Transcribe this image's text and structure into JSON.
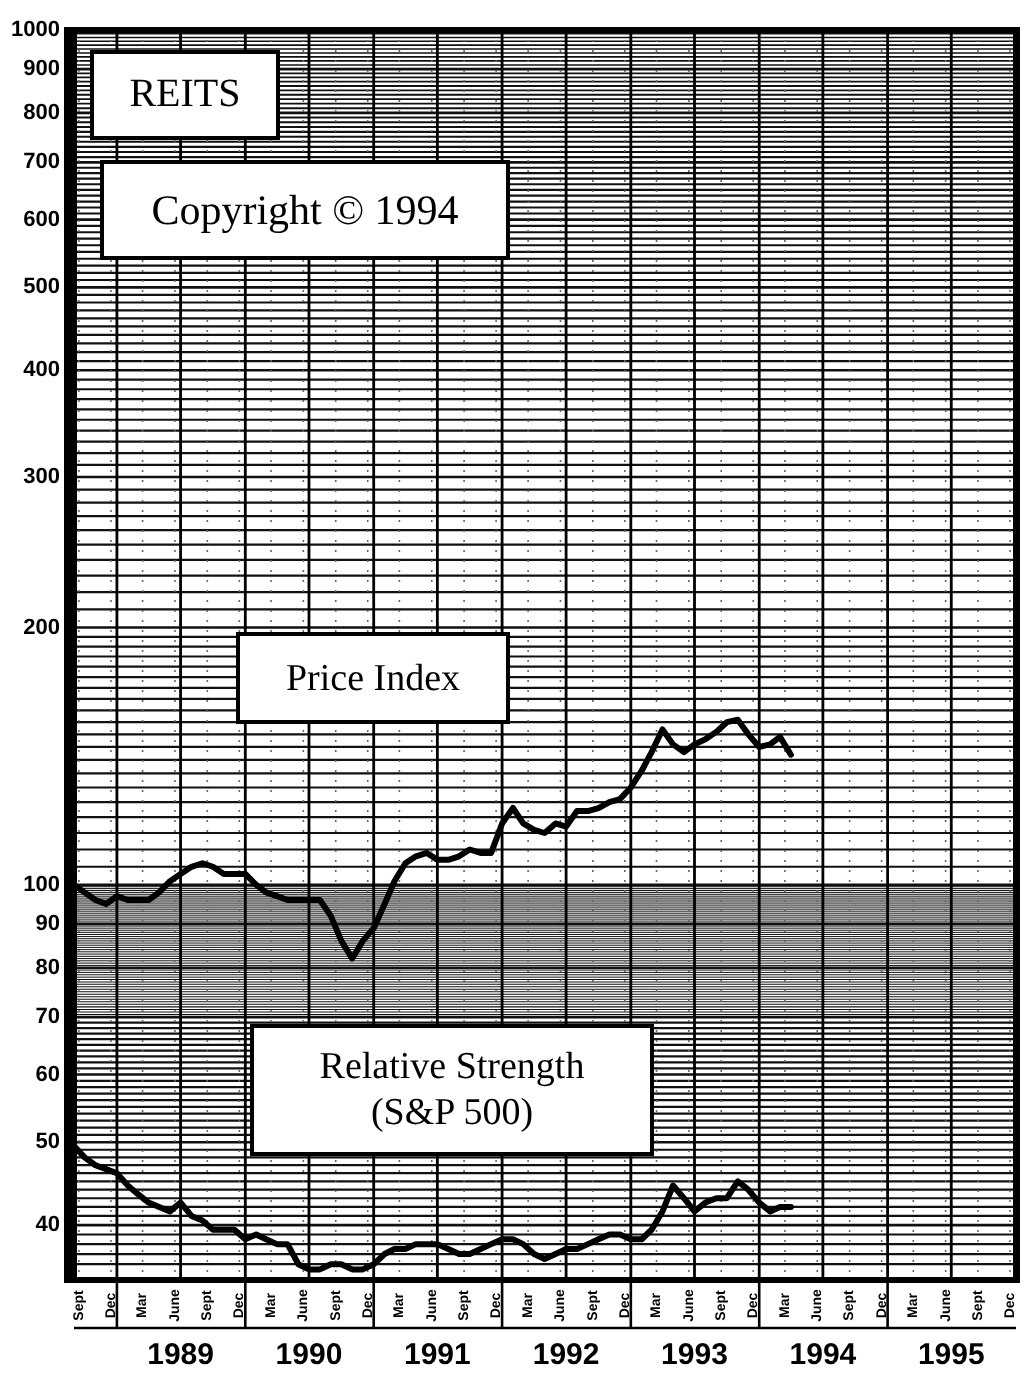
{
  "chart_data": {
    "type": "line",
    "title": "REITS",
    "annotations": [
      "Copyright © 1994"
    ],
    "log": true,
    "grid": true,
    "xlim": [
      "1988-09-01",
      "1996-01-01"
    ],
    "xticks": [
      {
        "value": "1988-09-15",
        "label": "Sept"
      },
      {
        "value": "1988-12-15",
        "label": "Dec"
      },
      {
        "value": "1989-01-01",
        "label": null
      },
      {
        "value": "1989-03-15",
        "label": "Mar"
      },
      {
        "value": "1989-06-15",
        "label": "June"
      },
      {
        "value": "1989-09-15",
        "label": "Sept"
      },
      {
        "value": "1989-12-15",
        "label": "Dec"
      },
      {
        "value": "1990-01-01",
        "label": null
      },
      {
        "value": "1990-03-15",
        "label": "Mar"
      },
      {
        "value": "1990-06-15",
        "label": "June"
      },
      {
        "value": "1990-09-15",
        "label": "Sept"
      },
      {
        "value": "1990-12-15",
        "label": "Dec"
      },
      {
        "value": "1991-01-01",
        "label": null
      },
      {
        "value": "1991-03-15",
        "label": "Mar"
      },
      {
        "value": "1991-06-15",
        "label": "June"
      },
      {
        "value": "1991-09-15",
        "label": "Sept"
      },
      {
        "value": "1991-12-15",
        "label": "Dec"
      },
      {
        "value": "1992-01-01",
        "label": null
      },
      {
        "value": "1992-03-15",
        "label": "Mar"
      },
      {
        "value": "1992-06-15",
        "label": "June"
      },
      {
        "value": "1992-09-15",
        "label": "Sept"
      },
      {
        "value": "1992-12-15",
        "label": "Dec"
      },
      {
        "value": "1993-01-01",
        "label": null
      },
      {
        "value": "1993-03-15",
        "label": "Mar"
      },
      {
        "value": "1993-06-15",
        "label": "June"
      },
      {
        "value": "1993-09-15",
        "label": "Sept"
      },
      {
        "value": "1993-12-15",
        "label": "Dec"
      },
      {
        "value": "1994-01-01",
        "label": null
      },
      {
        "value": "1994-03-15",
        "label": "Mar"
      },
      {
        "value": "1994-06-15",
        "label": "June"
      },
      {
        "value": "1994-09-15",
        "label": "Sept"
      },
      {
        "value": "1994-12-15",
        "label": "Dec"
      },
      {
        "value": "1995-01-01",
        "label": null
      },
      {
        "value": "1995-03-15",
        "label": "Mar"
      },
      {
        "value": "1995-06-15",
        "label": "June"
      },
      {
        "value": "1995-09-15",
        "label": "Sept"
      },
      {
        "value": "1995-12-15",
        "label": "Dec"
      }
    ],
    "x2lim": [
      "1988-09-01",
      "1996-01-01"
    ],
    "x2ticks": [
      {
        "value": "1989-07-01",
        "label": "1989"
      },
      {
        "value": "1990-07-01",
        "label": "1990"
      },
      {
        "value": "1991-07-01",
        "label": "1991"
      },
      {
        "value": "1992-07-01",
        "label": "1992"
      },
      {
        "value": "1993-07-01",
        "label": "1993"
      },
      {
        "value": "1994-07-01",
        "label": "1994"
      },
      {
        "value": "1995-07-01",
        "label": "1995"
      }
    ],
    "ylim": [
      34.5,
      1000
    ],
    "yticks": [
      {
        "value": 36,
        "label": null
      },
      {
        "value": 37,
        "label": null
      },
      {
        "value": 38,
        "label": null
      },
      {
        "value": 39,
        "label": null
      },
      40,
      {
        "value": 41,
        "label": null
      },
      {
        "value": 42,
        "label": null
      },
      {
        "value": 43,
        "label": null
      },
      {
        "value": 44,
        "label": null
      },
      {
        "value": 45,
        "label": null
      },
      {
        "value": 46,
        "label": null
      },
      {
        "value": 47,
        "label": null
      },
      {
        "value": 48,
        "label": null
      },
      {
        "value": 49,
        "label": null
      },
      50,
      {
        "value": 51,
        "label": null
      },
      {
        "value": 52,
        "label": null
      },
      {
        "value": 53,
        "label": null
      },
      {
        "value": 54,
        "label": null
      },
      {
        "value": 55,
        "label": null
      },
      {
        "value": 56,
        "label": null
      },
      {
        "value": 57,
        "label": null
      },
      {
        "value": 58,
        "label": null
      },
      {
        "value": 59,
        "label": null
      },
      60,
      {
        "value": 61,
        "label": null
      },
      {
        "value": 62,
        "label": null
      },
      {
        "value": 63,
        "label": null
      },
      {
        "value": 64,
        "label": null
      },
      {
        "value": 65,
        "label": null
      },
      {
        "value": 66,
        "label": null
      },
      {
        "value": 67,
        "label": null
      },
      {
        "value": 68,
        "label": null
      },
      {
        "value": 69,
        "label": null
      },
      70,
      {
        "value": 70.5,
        "label": null
      },
      {
        "value": 71,
        "label": null
      },
      {
        "value": 71.5,
        "label": null
      },
      {
        "value": 72,
        "label": null
      },
      {
        "value": 72.5,
        "label": null
      },
      {
        "value": 73,
        "label": null
      },
      {
        "value": 73.5,
        "label": null
      },
      {
        "value": 74,
        "label": null
      },
      {
        "value": 74.5,
        "label": null
      },
      {
        "value": 75,
        "label": null
      },
      {
        "value": 75.5,
        "label": null
      },
      {
        "value": 76,
        "label": null
      },
      {
        "value": 76.5,
        "label": null
      },
      {
        "value": 77,
        "label": null
      },
      {
        "value": 77.5,
        "label": null
      },
      {
        "value": 78,
        "label": null
      },
      {
        "value": 78.5,
        "label": null
      },
      {
        "value": 79,
        "label": null
      },
      {
        "value": 79.5,
        "label": null
      },
      80,
      {
        "value": 80.5,
        "label": null
      },
      {
        "value": 81,
        "label": null
      },
      {
        "value": 81.5,
        "label": null
      },
      {
        "value": 82,
        "label": null
      },
      {
        "value": 82.5,
        "label": null
      },
      {
        "value": 83,
        "label": null
      },
      {
        "value": 83.5,
        "label": null
      },
      {
        "value": 84,
        "label": null
      },
      {
        "value": 84.5,
        "label": null
      },
      {
        "value": 85,
        "label": null
      },
      {
        "value": 85.5,
        "label": null
      },
      {
        "value": 86,
        "label": null
      },
      {
        "value": 86.5,
        "label": null
      },
      {
        "value": 87,
        "label": null
      },
      {
        "value": 87.5,
        "label": null
      },
      {
        "value": 88,
        "label": null
      },
      {
        "value": 88.5,
        "label": null
      },
      {
        "value": 89,
        "label": null
      },
      {
        "value": 89.5,
        "label": null
      },
      90,
      {
        "value": 90.5,
        "label": null
      },
      {
        "value": 91,
        "label": null
      },
      {
        "value": 91.5,
        "label": null
      },
      {
        "value": 92,
        "label": null
      },
      {
        "value": 92.5,
        "label": null
      },
      {
        "value": 93,
        "label": null
      },
      {
        "value": 93.5,
        "label": null
      },
      {
        "value": 94,
        "label": null
      },
      {
        "value": 94.5,
        "label": null
      },
      {
        "value": 95,
        "label": null
      },
      {
        "value": 95.5,
        "label": null
      },
      {
        "value": 96,
        "label": null
      },
      {
        "value": 96.5,
        "label": null
      },
      {
        "value": 97,
        "label": null
      },
      {
        "value": 97.5,
        "label": null
      },
      {
        "value": 98,
        "label": null
      },
      {
        "value": 98.5,
        "label": null
      },
      {
        "value": 99,
        "label": null
      },
      {
        "value": 99.5,
        "label": null
      },
      100,
      {
        "value": 105,
        "label": null
      },
      {
        "value": 110,
        "label": null
      },
      {
        "value": 115,
        "label": null
      },
      {
        "value": 120,
        "label": null
      },
      {
        "value": 125,
        "label": null
      },
      {
        "value": 130,
        "label": null
      },
      {
        "value": 135,
        "label": null
      },
      {
        "value": 140,
        "label": null
      },
      {
        "value": 145,
        "label": null
      },
      {
        "value": 150,
        "label": null
      },
      {
        "value": 155,
        "label": null
      },
      {
        "value": 160,
        "label": null
      },
      {
        "value": 165,
        "label": null
      },
      {
        "value": 170,
        "label": null
      },
      {
        "value": 175,
        "label": null
      },
      {
        "value": 180,
        "label": null
      },
      {
        "value": 185,
        "label": null
      },
      {
        "value": 190,
        "label": null
      },
      {
        "value": 195,
        "label": null
      },
      200,
      {
        "value": 210,
        "label": null
      },
      {
        "value": 220,
        "label": null
      },
      {
        "value": 230,
        "label": null
      },
      {
        "value": 240,
        "label": null
      },
      {
        "value": 250,
        "label": null
      },
      {
        "value": 260,
        "label": null
      },
      {
        "value": 270,
        "label": null
      },
      {
        "value": 280,
        "label": null
      },
      {
        "value": 290,
        "label": null
      },
      300,
      {
        "value": 310,
        "label": null
      },
      {
        "value": 320,
        "label": null
      },
      {
        "value": 330,
        "label": null
      },
      {
        "value": 340,
        "label": null
      },
      {
        "value": 350,
        "label": null
      },
      {
        "value": 360,
        "label": null
      },
      {
        "value": 370,
        "label": null
      },
      {
        "value": 380,
        "label": null
      },
      {
        "value": 390,
        "label": null
      },
      400,
      {
        "value": 410,
        "label": null
      },
      {
        "value": 420,
        "label": null
      },
      {
        "value": 430,
        "label": null
      },
      {
        "value": 440,
        "label": null
      },
      {
        "value": 450,
        "label": null
      },
      {
        "value": 460,
        "label": null
      },
      {
        "value": 470,
        "label": null
      },
      {
        "value": 480,
        "label": null
      },
      {
        "value": 490,
        "label": null
      },
      500,
      {
        "value": 510,
        "label": null
      },
      {
        "value": 520,
        "label": null
      },
      {
        "value": 530,
        "label": null
      },
      {
        "value": 540,
        "label": null
      },
      {
        "value": 550,
        "label": null
      },
      {
        "value": 560,
        "label": null
      },
      {
        "value": 570,
        "label": null
      },
      {
        "value": 580,
        "label": null
      },
      {
        "value": 590,
        "label": null
      },
      600,
      {
        "value": 610,
        "label": null
      },
      {
        "value": 620,
        "label": null
      },
      {
        "value": 630,
        "label": null
      },
      {
        "value": 640,
        "label": null
      },
      {
        "value": 650,
        "label": null
      },
      {
        "value": 660,
        "label": null
      },
      {
        "value": 670,
        "label": null
      },
      {
        "value": 680,
        "label": null
      },
      {
        "value": 690,
        "label": null
      },
      700,
      {
        "value": 710,
        "label": null
      },
      {
        "value": 720,
        "label": null
      },
      {
        "value": 730,
        "label": null
      },
      {
        "value": 740,
        "label": null
      },
      {
        "value": 750,
        "label": null
      },
      {
        "value": 760,
        "label": null
      },
      {
        "value": 770,
        "label": null
      },
      {
        "value": 780,
        "label": null
      },
      {
        "value": 790,
        "label": null
      },
      800,
      {
        "value": 810,
        "label": null
      },
      {
        "value": 820,
        "label": null
      },
      {
        "value": 830,
        "label": null
      },
      {
        "value": 840,
        "label": null
      },
      {
        "value": 850,
        "label": null
      },
      {
        "value": 860,
        "label": null
      },
      {
        "value": 870,
        "label": null
      },
      {
        "value": 880,
        "label": null
      },
      {
        "value": 890,
        "label": null
      },
      900,
      {
        "value": 910,
        "label": null
      },
      {
        "value": 920,
        "label": null
      },
      {
        "value": 930,
        "label": null
      },
      {
        "value": 940,
        "label": null
      },
      {
        "value": 950,
        "label": null
      },
      {
        "value": 960,
        "label": null
      },
      {
        "value": 970,
        "label": null
      },
      {
        "value": 980,
        "label": null
      },
      {
        "value": 990,
        "label": null
      },
      1000
    ],
    "x": [
      "1988-09",
      "1988-10",
      "1988-11",
      "1988-12",
      "1989-01",
      "1989-02",
      "1989-03",
      "1989-04",
      "1989-05",
      "1989-06",
      "1989-07",
      "1989-08",
      "1989-09",
      "1989-10",
      "1989-11",
      "1989-12",
      "1990-01",
      "1990-02",
      "1990-03",
      "1990-04",
      "1990-05",
      "1990-06",
      "1990-07",
      "1990-08",
      "1990-09",
      "1990-10",
      "1990-11",
      "1990-12",
      "1991-01",
      "1991-02",
      "1991-03",
      "1991-04",
      "1991-05",
      "1991-06",
      "1991-07",
      "1991-08",
      "1991-09",
      "1991-10",
      "1991-11",
      "1991-12",
      "1992-01",
      "1992-02",
      "1992-03",
      "1992-04",
      "1992-05",
      "1992-06",
      "1992-07",
      "1992-08",
      "1992-09",
      "1992-10",
      "1992-11",
      "1992-12",
      "1993-01",
      "1993-02",
      "1993-03",
      "1993-04",
      "1993-05",
      "1993-06",
      "1993-07",
      "1993-08",
      "1993-09",
      "1993-10",
      "1993-11",
      "1993-12",
      "1994-01",
      "1994-02",
      "1994-03",
      "1994-04"
    ],
    "series": [
      {
        "name": "Price Index",
        "color": "#000000",
        "values": [
          100,
          98,
          96,
          95,
          97,
          96,
          96,
          96,
          98,
          101,
          103,
          105,
          106,
          105,
          103,
          103,
          103,
          100,
          98,
          97,
          96,
          96,
          96,
          96,
          92,
          86,
          82,
          86,
          89,
          95,
          101,
          106,
          108,
          109,
          107,
          107,
          108,
          110,
          109,
          109,
          118,
          123,
          118,
          116,
          115,
          118,
          117,
          122,
          122,
          123,
          125,
          126,
          130,
          136,
          143,
          152,
          146,
          143,
          146,
          148,
          151,
          155,
          156,
          150,
          145,
          146,
          149,
          142
        ]
      },
      {
        "name": "Relative Strength (S&P 500)",
        "color": "#000000",
        "values": [
          49.5,
          48,
          47,
          46.5,
          46,
          44.5,
          43.5,
          42.5,
          42,
          41.5,
          42.5,
          41,
          40.5,
          39.5,
          39.5,
          39.5,
          38.5,
          39,
          38.5,
          38,
          38,
          36,
          35.5,
          35.5,
          36,
          36,
          35.5,
          35.5,
          36,
          37,
          37.5,
          37.5,
          38,
          38,
          38,
          37.5,
          37,
          37,
          37.5,
          38,
          38.5,
          38.5,
          38,
          37,
          36.5,
          37,
          37.5,
          37.5,
          38,
          38.5,
          39,
          39,
          38.5,
          38.5,
          39.5,
          41.5,
          44.5,
          43,
          41.5,
          42.5,
          43,
          43,
          45,
          44,
          42.5,
          41.5,
          42,
          42
        ]
      }
    ]
  }
}
